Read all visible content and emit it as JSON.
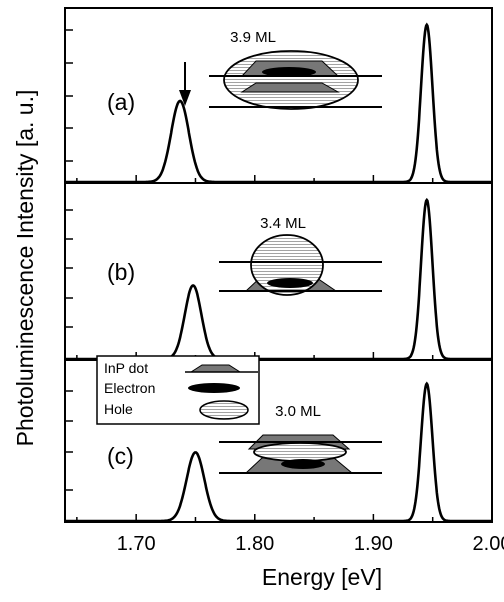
{
  "chart_data": {
    "type": "line",
    "xlabel": "Energy [eV]",
    "ylabel": "Photoluminescence Intensity [a. u.]",
    "xlim": [
      1.64,
      2.0
    ],
    "x_ticks": [
      "1.70",
      "1.80",
      "1.90",
      "2.00"
    ],
    "x_tick_values": [
      1.7,
      1.8,
      1.9,
      2.0
    ],
    "grid": false,
    "panels": [
      {
        "label": "(a)",
        "thickness": "3.9 ML",
        "arrow": true,
        "peaks": [
          {
            "energy": 1.737,
            "height": 0.48,
            "width": 0.0075
          },
          {
            "energy": 1.945,
            "height": 0.93,
            "width": 0.0048
          }
        ]
      },
      {
        "label": "(b)",
        "thickness": "3.4 ML",
        "arrow": false,
        "peaks": [
          {
            "energy": 1.748,
            "height": 0.43,
            "width": 0.007
          },
          {
            "energy": 1.945,
            "height": 0.93,
            "width": 0.0048
          }
        ]
      },
      {
        "label": "(c)",
        "thickness": "3.0 ML",
        "arrow": false,
        "peaks": [
          {
            "energy": 1.75,
            "height": 0.44,
            "width": 0.0075
          },
          {
            "energy": 1.945,
            "height": 0.88,
            "width": 0.0048
          }
        ]
      }
    ],
    "legend": {
      "placement": "inside bottom panel, top-left",
      "entries": [
        {
          "label": "InP dot",
          "icon": "trapezoid-dot-icon"
        },
        {
          "label": "Electron",
          "icon": "electron-ellipse-icon"
        },
        {
          "label": "Hole",
          "icon": "hole-ellipse-icon"
        }
      ]
    }
  }
}
